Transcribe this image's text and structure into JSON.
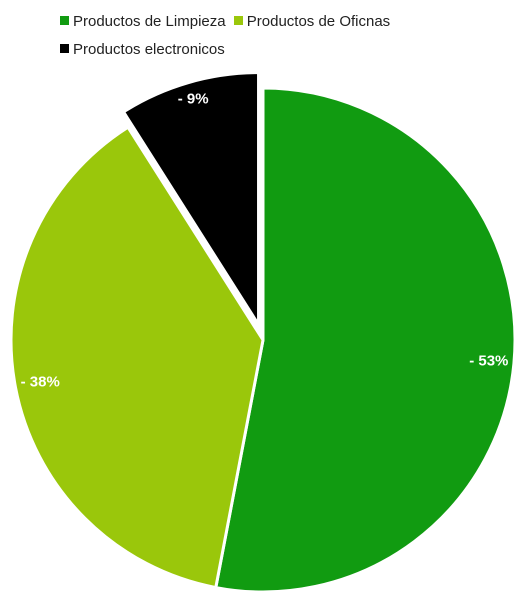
{
  "chart_data": {
    "type": "pie",
    "categories": [
      "Productos de Limpieza",
      "Productos de Oficnas",
      "Productos electronicos"
    ],
    "values": [
      53,
      38,
      9
    ],
    "labels": [
      "- 53%",
      "- 38%",
      "- 9%"
    ],
    "colors": [
      "#119b11",
      "#9ac70b",
      "#000000"
    ],
    "exploded": [
      "Productos electronicos"
    ],
    "title": "",
    "legend_position": "top"
  }
}
